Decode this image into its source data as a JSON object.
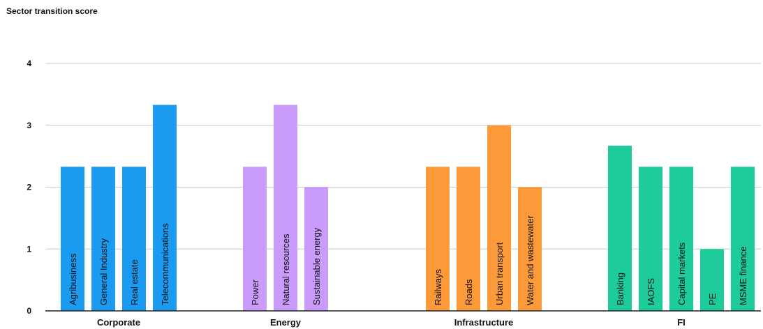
{
  "chart_data": {
    "type": "bar",
    "title": "Sector transition score",
    "ylim": [
      0,
      4
    ],
    "y_ticks": [
      0,
      1,
      2,
      3,
      4
    ],
    "grid": true,
    "groups": [
      {
        "name": "Corporate",
        "color": "#1a9af0",
        "bars": [
          {
            "label": "Agribusiness",
            "value": 2.33
          },
          {
            "label": "General Industry",
            "value": 2.33
          },
          {
            "label": "Real estate",
            "value": 2.33
          },
          {
            "label": "Telecommunications",
            "value": 3.33
          }
        ]
      },
      {
        "name": "Energy",
        "color": "#c99cfb",
        "bars": [
          {
            "label": "Power",
            "value": 2.33
          },
          {
            "label": "Natural resources",
            "value": 3.33
          },
          {
            "label": "Sustainable energy",
            "value": 2.0
          }
        ]
      },
      {
        "name": "Infrastructure",
        "color": "#fc9a3a",
        "bars": [
          {
            "label": "Railways",
            "value": 2.33
          },
          {
            "label": "Roads",
            "value": 2.33
          },
          {
            "label": "Urban transport",
            "value": 3.0
          },
          {
            "label": "Water and wastewater",
            "value": 2.0
          }
        ]
      },
      {
        "name": "FI",
        "color": "#1dcc9a",
        "bars": [
          {
            "label": "Banking",
            "value": 2.67
          },
          {
            "label": "IAOFS",
            "value": 2.33
          },
          {
            "label": "Capital markets",
            "value": 2.33
          },
          {
            "label": "PE",
            "value": 1.0
          },
          {
            "label": "MSME finance",
            "value": 2.33
          }
        ]
      }
    ]
  }
}
